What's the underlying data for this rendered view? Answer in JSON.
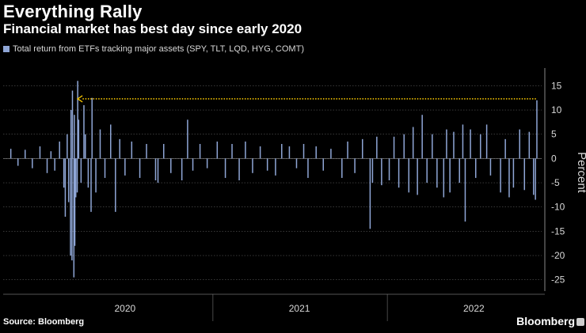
{
  "header": {
    "title": "Everything Rally",
    "subtitle": "Financial market has best day since early 2020"
  },
  "legend": {
    "label": "Total return from ETFs tracking major assets (SPY, TLT, LQD, HYG, COMT)",
    "color": "#8fa6d6"
  },
  "footer": {
    "source": "Source: Bloomberg",
    "brand": "Bloomberg"
  },
  "colors": {
    "background": "#000000",
    "bar": "#8fa6d6",
    "arrow": "#f2c200",
    "grid": "#5a5a5a",
    "text": "#d8d8d8"
  },
  "chart_data": {
    "type": "bar",
    "ylabel": "Percent",
    "ylim": [
      -27,
      18
    ],
    "yticks": [
      15,
      10,
      5,
      0,
      -5,
      -10,
      -15,
      -20,
      -25
    ],
    "x_range": [
      "2019-10-20",
      "2022-11-20"
    ],
    "xticks": [
      {
        "label": "2020",
        "mid": "2020-07-01"
      },
      {
        "label": "2021",
        "mid": "2021-07-01"
      },
      {
        "label": "2022",
        "mid": "2022-07-01"
      }
    ],
    "year_boundaries": [
      "2021-01-01",
      "2022-01-01"
    ],
    "grid": true,
    "annotation": {
      "type": "arrow",
      "y": 12.3,
      "from": "2022-11-08",
      "to": "2020-03-24"
    },
    "series": [
      {
        "name": "",
        "points": [
          [
            "2019-11-05",
            2.0
          ],
          [
            "2019-11-20",
            -1.5
          ],
          [
            "2019-12-05",
            1.8
          ],
          [
            "2019-12-20",
            -2.0
          ],
          [
            "2020-01-05",
            2.5
          ],
          [
            "2020-01-20",
            -3.0
          ],
          [
            "2020-01-28",
            1.5
          ],
          [
            "2020-02-05",
            -2.5
          ],
          [
            "2020-02-15",
            3.5
          ],
          [
            "2020-02-24",
            -6.0
          ],
          [
            "2020-02-27",
            -12.0
          ],
          [
            "2020-03-02",
            5.0
          ],
          [
            "2020-03-05",
            -9.0
          ],
          [
            "2020-03-09",
            -20.0
          ],
          [
            "2020-03-10",
            10.0
          ],
          [
            "2020-03-12",
            -21.0
          ],
          [
            "2020-03-13",
            14.0
          ],
          [
            "2020-03-16",
            -24.5
          ],
          [
            "2020-03-17",
            9.0
          ],
          [
            "2020-03-18",
            -18.0
          ],
          [
            "2020-03-20",
            -8.0
          ],
          [
            "2020-03-23",
            -7.0
          ],
          [
            "2020-03-24",
            16.0
          ],
          [
            "2020-03-26",
            8.0
          ],
          [
            "2020-03-31",
            -5.0
          ],
          [
            "2020-04-06",
            11.0
          ],
          [
            "2020-04-09",
            5.0
          ],
          [
            "2020-04-15",
            -6.0
          ],
          [
            "2020-04-21",
            -11.0
          ],
          [
            "2020-04-23",
            12.5
          ],
          [
            "2020-05-01",
            -7.0
          ],
          [
            "2020-05-10",
            6.0
          ],
          [
            "2020-05-20",
            -4.0
          ],
          [
            "2020-06-01",
            7.0
          ],
          [
            "2020-06-11",
            -11.0
          ],
          [
            "2020-06-20",
            4.0
          ],
          [
            "2020-07-01",
            -3.5
          ],
          [
            "2020-07-15",
            3.5
          ],
          [
            "2020-08-01",
            -4.0
          ],
          [
            "2020-08-15",
            3.0
          ],
          [
            "2020-09-03",
            -4.5
          ],
          [
            "2020-09-08",
            -5.0
          ],
          [
            "2020-09-20",
            3.0
          ],
          [
            "2020-10-05",
            -3.0
          ],
          [
            "2020-10-28",
            -4.5
          ],
          [
            "2020-11-09",
            8.0
          ],
          [
            "2020-11-20",
            -2.5
          ],
          [
            "2020-12-05",
            3.0
          ],
          [
            "2020-12-20",
            -2.0
          ],
          [
            "2021-01-10",
            3.5
          ],
          [
            "2021-01-27",
            -4.0
          ],
          [
            "2021-02-10",
            3.0
          ],
          [
            "2021-02-25",
            -4.5
          ],
          [
            "2021-03-10",
            3.5
          ],
          [
            "2021-03-25",
            -3.0
          ],
          [
            "2021-04-10",
            2.5
          ],
          [
            "2021-04-25",
            -2.5
          ],
          [
            "2021-05-12",
            -3.5
          ],
          [
            "2021-05-25",
            3.0
          ],
          [
            "2021-06-10",
            2.5
          ],
          [
            "2021-06-25",
            -2.0
          ],
          [
            "2021-07-10",
            3.0
          ],
          [
            "2021-07-19",
            -4.0
          ],
          [
            "2021-08-05",
            2.5
          ],
          [
            "2021-08-20",
            -2.5
          ],
          [
            "2021-09-05",
            2.0
          ],
          [
            "2021-09-28",
            -4.0
          ],
          [
            "2021-10-10",
            3.5
          ],
          [
            "2021-10-25",
            -3.0
          ],
          [
            "2021-11-10",
            4.0
          ],
          [
            "2021-11-26",
            -14.5
          ],
          [
            "2021-12-01",
            -5.0
          ],
          [
            "2021-12-10",
            4.5
          ],
          [
            "2021-12-20",
            -5.5
          ],
          [
            "2022-01-05",
            -4.5
          ],
          [
            "2022-01-15",
            4.5
          ],
          [
            "2022-01-25",
            -6.0
          ],
          [
            "2022-02-05",
            5.0
          ],
          [
            "2022-02-15",
            -7.0
          ],
          [
            "2022-02-24",
            6.5
          ],
          [
            "2022-03-05",
            -7.5
          ],
          [
            "2022-03-15",
            9.0
          ],
          [
            "2022-03-25",
            -5.0
          ],
          [
            "2022-04-05",
            5.0
          ],
          [
            "2022-04-15",
            -6.0
          ],
          [
            "2022-04-29",
            -8.0
          ],
          [
            "2022-05-05",
            6.0
          ],
          [
            "2022-05-12",
            -7.0
          ],
          [
            "2022-05-20",
            5.5
          ],
          [
            "2022-06-01",
            -5.0
          ],
          [
            "2022-06-08",
            7.0
          ],
          [
            "2022-06-13",
            -13.0
          ],
          [
            "2022-06-24",
            6.0
          ],
          [
            "2022-07-05",
            -4.0
          ],
          [
            "2022-07-15",
            5.0
          ],
          [
            "2022-07-28",
            7.0
          ],
          [
            "2022-08-05",
            -3.5
          ],
          [
            "2022-08-26",
            -7.0
          ],
          [
            "2022-09-05",
            4.0
          ],
          [
            "2022-09-13",
            -8.0
          ],
          [
            "2022-09-22",
            -6.0
          ],
          [
            "2022-10-05",
            6.0
          ],
          [
            "2022-10-15",
            -6.5
          ],
          [
            "2022-10-25",
            5.5
          ],
          [
            "2022-11-03",
            -7.5
          ],
          [
            "2022-11-07",
            -8.5
          ],
          [
            "2022-11-10",
            12.0
          ]
        ]
      }
    ]
  }
}
